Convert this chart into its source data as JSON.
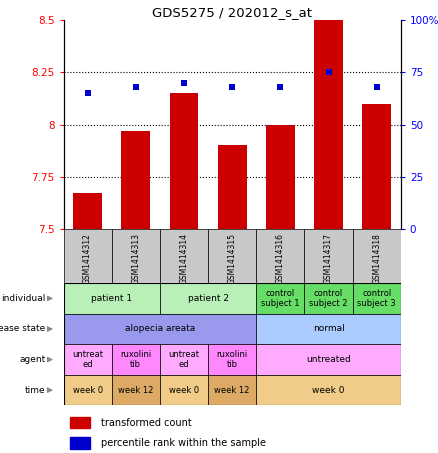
{
  "title": "GDS5275 / 202012_s_at",
  "samples": [
    "GSM1414312",
    "GSM1414313",
    "GSM1414314",
    "GSM1414315",
    "GSM1414316",
    "GSM1414317",
    "GSM1414318"
  ],
  "red_values": [
    7.67,
    7.97,
    8.15,
    7.9,
    8.0,
    8.5,
    8.1
  ],
  "blue_values_pct": [
    65,
    68,
    70,
    68,
    68,
    75,
    68
  ],
  "ylim_left": [
    7.5,
    8.5
  ],
  "ylim_right": [
    0,
    100
  ],
  "yticks_left": [
    7.5,
    7.75,
    8.0,
    8.25,
    8.5
  ],
  "yticks_right": [
    0,
    25,
    50,
    75,
    100
  ],
  "ytick_labels_left": [
    "7.5",
    "7.75",
    "8",
    "8.25",
    "8.5"
  ],
  "ytick_labels_right": [
    "0",
    "25",
    "50",
    "75",
    "100%"
  ],
  "hlines": [
    7.75,
    8.0,
    8.25
  ],
  "row_labels": [
    "individual",
    "disease state",
    "agent",
    "time"
  ],
  "individual_groups": [
    {
      "label": "patient 1",
      "cols": [
        0,
        1
      ],
      "color": "#b8f0b8"
    },
    {
      "label": "patient 2",
      "cols": [
        2,
        3
      ],
      "color": "#b8f0b8"
    },
    {
      "label": "control\nsubject 1",
      "cols": [
        4
      ],
      "color": "#66dd66"
    },
    {
      "label": "control\nsubject 2",
      "cols": [
        5
      ],
      "color": "#66dd66"
    },
    {
      "label": "control\nsubject 3",
      "cols": [
        6
      ],
      "color": "#66dd66"
    }
  ],
  "disease_groups": [
    {
      "label": "alopecia areata",
      "cols": [
        0,
        1,
        2,
        3
      ],
      "color": "#9999ee"
    },
    {
      "label": "normal",
      "cols": [
        4,
        5,
        6
      ],
      "color": "#aaccff"
    }
  ],
  "agent_groups": [
    {
      "label": "untreat\ned",
      "cols": [
        0
      ],
      "color": "#ffaaff"
    },
    {
      "label": "ruxolini\ntib",
      "cols": [
        1
      ],
      "color": "#ff88ff"
    },
    {
      "label": "untreat\ned",
      "cols": [
        2
      ],
      "color": "#ffaaff"
    },
    {
      "label": "ruxolini\ntib",
      "cols": [
        3
      ],
      "color": "#ff88ff"
    },
    {
      "label": "untreated",
      "cols": [
        4,
        5,
        6
      ],
      "color": "#ffaaff"
    }
  ],
  "time_groups": [
    {
      "label": "week 0",
      "cols": [
        0
      ],
      "color": "#f0cc88"
    },
    {
      "label": "week 12",
      "cols": [
        1
      ],
      "color": "#ddaa66"
    },
    {
      "label": "week 0",
      "cols": [
        2
      ],
      "color": "#f0cc88"
    },
    {
      "label": "week 12",
      "cols": [
        3
      ],
      "color": "#ddaa66"
    },
    {
      "label": "week 0",
      "cols": [
        4,
        5,
        6
      ],
      "color": "#f0cc88"
    }
  ],
  "red_color": "#cc0000",
  "blue_color": "#0000cc",
  "bar_width": 0.6,
  "background_color": "#ffffff",
  "sample_bg_color": "#c8c8c8",
  "legend_red": "transformed count",
  "legend_blue": "percentile rank within the sample"
}
